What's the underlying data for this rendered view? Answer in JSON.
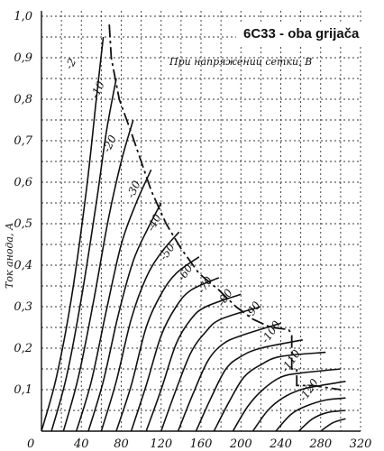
{
  "chart_data": {
    "type": "line",
    "title": "6C33 - oba grijača",
    "subtitle": "При напряжении сетки, В",
    "ylabel": "Ток анода, А",
    "xlabel": "",
    "xlim": [
      0,
      320
    ],
    "ylim": [
      0,
      1.0
    ],
    "xticks": [
      "0",
      "40",
      "80",
      "120",
      "160",
      "200",
      "240",
      "280",
      "320"
    ],
    "yticks": [
      "0,1",
      "0,2",
      "0,3",
      "0,4",
      "0,5",
      "0,6",
      "0,7",
      "0,8",
      "0,9",
      "1,0"
    ],
    "grid": true,
    "series": [
      {
        "name": "-2",
        "x0": 0,
        "points": [
          [
            0,
            0
          ],
          [
            15,
            0.13
          ],
          [
            30,
            0.32
          ],
          [
            45,
            0.58
          ],
          [
            55,
            0.8
          ],
          [
            62,
            0.95
          ]
        ]
      },
      {
        "name": "-10",
        "x0": 10,
        "points": [
          [
            10,
            0
          ],
          [
            25,
            0.13
          ],
          [
            40,
            0.32
          ],
          [
            55,
            0.55
          ],
          [
            65,
            0.72
          ],
          [
            75,
            0.85
          ]
        ]
      },
      {
        "name": "-20",
        "x0": 22,
        "points": [
          [
            22,
            0
          ],
          [
            37,
            0.13
          ],
          [
            52,
            0.31
          ],
          [
            67,
            0.51
          ],
          [
            80,
            0.65
          ],
          [
            92,
            0.75
          ]
        ]
      },
      {
        "name": "-30",
        "x0": 35,
        "points": [
          [
            35,
            0
          ],
          [
            50,
            0.12
          ],
          [
            65,
            0.29
          ],
          [
            80,
            0.45
          ],
          [
            95,
            0.55
          ],
          [
            110,
            0.63
          ]
        ]
      },
      {
        "name": "-40",
        "x0": 47,
        "points": [
          [
            47,
            0
          ],
          [
            62,
            0.12
          ],
          [
            77,
            0.28
          ],
          [
            92,
            0.41
          ],
          [
            107,
            0.49
          ],
          [
            120,
            0.55
          ]
        ]
      },
      {
        "name": "-50",
        "x0": 60,
        "points": [
          [
            60,
            0
          ],
          [
            75,
            0.12
          ],
          [
            90,
            0.27
          ],
          [
            105,
            0.37
          ],
          [
            120,
            0.43
          ],
          [
            138,
            0.48
          ]
        ]
      },
      {
        "name": "-60",
        "x0": 75,
        "points": [
          [
            75,
            0
          ],
          [
            90,
            0.11
          ],
          [
            105,
            0.25
          ],
          [
            120,
            0.33
          ],
          [
            135,
            0.38
          ],
          [
            158,
            0.42
          ]
        ]
      },
      {
        "name": "-70",
        "x0": 90,
        "points": [
          [
            90,
            0
          ],
          [
            105,
            0.11
          ],
          [
            120,
            0.23
          ],
          [
            135,
            0.3
          ],
          [
            150,
            0.34
          ],
          [
            178,
            0.37
          ]
        ]
      },
      {
        "name": "-80",
        "x0": 105,
        "points": [
          [
            105,
            0
          ],
          [
            120,
            0.1
          ],
          [
            135,
            0.21
          ],
          [
            150,
            0.27
          ],
          [
            165,
            0.3
          ],
          [
            200,
            0.33
          ]
        ]
      },
      {
        "name": "-90",
        "x0": 120,
        "points": [
          [
            120,
            0
          ],
          [
            135,
            0.1
          ],
          [
            150,
            0.19
          ],
          [
            165,
            0.24
          ],
          [
            180,
            0.27
          ],
          [
            220,
            0.3
          ]
        ]
      },
      {
        "name": "-100",
        "x0": 137,
        "points": [
          [
            137,
            0
          ],
          [
            152,
            0.09
          ],
          [
            167,
            0.17
          ],
          [
            182,
            0.21
          ],
          [
            200,
            0.23
          ],
          [
            240,
            0.26
          ]
        ]
      },
      {
        "name": "-110",
        "x0": 155,
        "points": [
          [
            155,
            0
          ],
          [
            170,
            0.08
          ],
          [
            185,
            0.15
          ],
          [
            200,
            0.18
          ],
          [
            220,
            0.2
          ],
          [
            262,
            0.22
          ]
        ]
      },
      {
        "name": "-120",
        "x0": 173,
        "points": [
          [
            173,
            0
          ],
          [
            188,
            0.07
          ],
          [
            203,
            0.13
          ],
          [
            220,
            0.16
          ],
          [
            240,
            0.18
          ],
          [
            285,
            0.19
          ]
        ]
      },
      {
        "name": "",
        "x0": 192,
        "points": [
          [
            192,
            0
          ],
          [
            207,
            0.06
          ],
          [
            222,
            0.1
          ],
          [
            240,
            0.13
          ],
          [
            260,
            0.14
          ],
          [
            300,
            0.15
          ]
        ]
      },
      {
        "name": "",
        "x0": 212,
        "points": [
          [
            212,
            0
          ],
          [
            227,
            0.05
          ],
          [
            242,
            0.08
          ],
          [
            260,
            0.1
          ],
          [
            280,
            0.11
          ],
          [
            305,
            0.12
          ]
        ]
      },
      {
        "name": "",
        "x0": 235,
        "points": [
          [
            235,
            0
          ],
          [
            250,
            0.04
          ],
          [
            265,
            0.06
          ],
          [
            285,
            0.075
          ],
          [
            305,
            0.08
          ]
        ]
      },
      {
        "name": "",
        "x0": 258,
        "points": [
          [
            258,
            0
          ],
          [
            272,
            0.03
          ],
          [
            287,
            0.045
          ],
          [
            305,
            0.05
          ]
        ]
      },
      {
        "name": "",
        "x0": 280,
        "points": [
          [
            280,
            0
          ],
          [
            292,
            0.02
          ],
          [
            305,
            0.03
          ]
        ]
      }
    ],
    "boundary": [
      [
        68,
        0.98
      ],
      [
        70,
        0.9
      ],
      [
        78,
        0.8
      ],
      [
        90,
        0.72
      ],
      [
        100,
        0.65
      ],
      [
        110,
        0.58
      ],
      [
        125,
        0.5
      ],
      [
        140,
        0.44
      ],
      [
        158,
        0.38
      ],
      [
        178,
        0.34
      ],
      [
        195,
        0.3
      ],
      [
        212,
        0.27
      ],
      [
        230,
        0.25
      ],
      [
        248,
        0.245
      ],
      [
        251,
        0.23
      ],
      [
        251,
        0.15
      ],
      [
        256,
        0.15
      ],
      [
        256,
        0.11
      ],
      [
        272,
        0.11
      ],
      [
        300,
        0.1
      ]
    ],
    "curve_labels": [
      {
        "text": "-2",
        "x": 30,
        "y": 0.87,
        "rotate": -62
      },
      {
        "text": "-10",
        "x": 56,
        "y": 0.8,
        "rotate": -65
      },
      {
        "text": "-20",
        "x": 68,
        "y": 0.67,
        "rotate": -65
      },
      {
        "text": "-30",
        "x": 92,
        "y": 0.56,
        "rotate": -65
      },
      {
        "text": "-40",
        "x": 112,
        "y": 0.48,
        "rotate": -62
      },
      {
        "text": "-50",
        "x": 124,
        "y": 0.41,
        "rotate": -55
      },
      {
        "text": "-60",
        "x": 142,
        "y": 0.36,
        "rotate": -55
      },
      {
        "text": "-70",
        "x": 162,
        "y": 0.33,
        "rotate": -55
      },
      {
        "text": "-80",
        "x": 182,
        "y": 0.3,
        "rotate": -55
      },
      {
        "text": "-90",
        "x": 210,
        "y": 0.27,
        "rotate": -55
      },
      {
        "text": "-100",
        "x": 226,
        "y": 0.21,
        "rotate": -55
      },
      {
        "text": "-110",
        "x": 246,
        "y": 0.14,
        "rotate": -55
      },
      {
        "text": "-120",
        "x": 264,
        "y": 0.07,
        "rotate": -55
      }
    ]
  }
}
